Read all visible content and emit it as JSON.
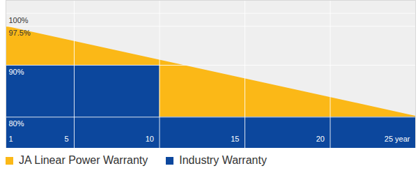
{
  "chart_data": {
    "type": "area",
    "series": [
      {
        "name": "JA Linear Power Warranty",
        "color": "#fbb817",
        "x": [
          1,
          25
        ],
        "values": [
          97.5,
          80.2
        ]
      },
      {
        "name": "Industry Warranty",
        "color": "#0c479d",
        "x": [
          1,
          10,
          25
        ],
        "values": [
          90,
          80,
          80
        ],
        "line_style": "step"
      }
    ],
    "xlim": [
      1,
      25
    ],
    "xticks": [
      1,
      5,
      10,
      15,
      20,
      {
        "value": 25,
        "label": "25 year"
      }
    ],
    "ylim": [
      74,
      102.5
    ],
    "yticks": [
      {
        "value": 80,
        "label": "80%"
      },
      {
        "value": 90,
        "label": "90%"
      },
      {
        "value": 97.5,
        "label": "97.5%"
      },
      {
        "value": 100,
        "label": "100%"
      }
    ],
    "grid": true,
    "legend": "bottom"
  }
}
